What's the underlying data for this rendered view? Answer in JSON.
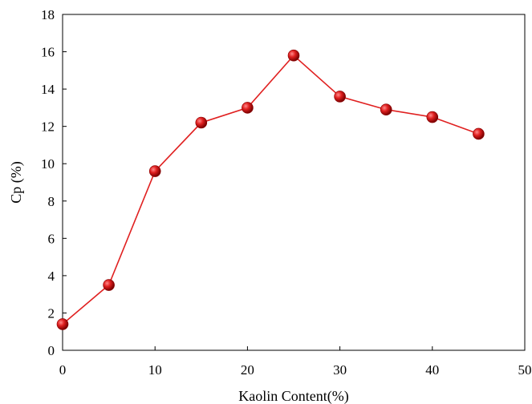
{
  "chart_data": {
    "type": "line",
    "xlabel": "Kaolin Content(%)",
    "ylabel": "Cp (%)",
    "xlim": [
      0,
      50
    ],
    "ylim": [
      0,
      18
    ],
    "xticks": [
      0,
      10,
      20,
      30,
      40,
      50
    ],
    "yticks": [
      0,
      2,
      4,
      6,
      8,
      10,
      12,
      14,
      16,
      18
    ],
    "grid": false,
    "series": [
      {
        "color": "#e02020",
        "marker": "sphere",
        "x": [
          0,
          5,
          10,
          15,
          20,
          25,
          30,
          35,
          40,
          45
        ],
        "y": [
          1.4,
          3.5,
          9.6,
          12.2,
          13.0,
          15.8,
          13.6,
          12.9,
          12.5,
          11.6
        ]
      }
    ]
  }
}
